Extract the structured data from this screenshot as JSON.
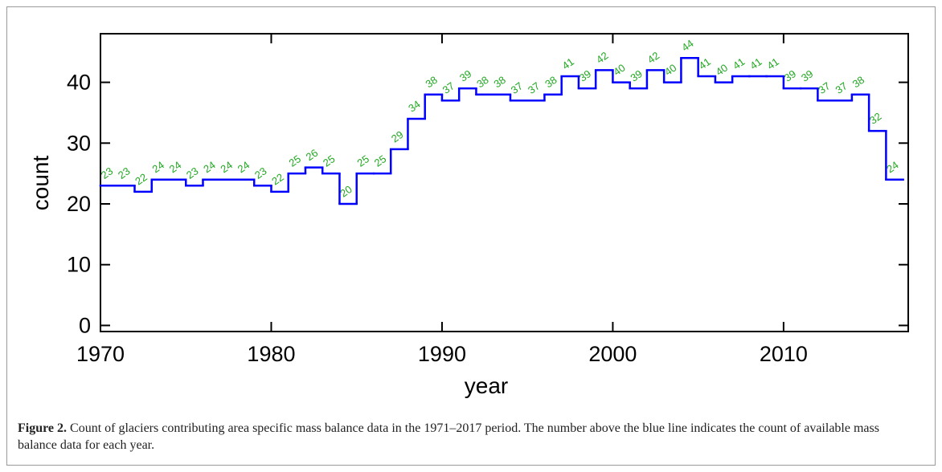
{
  "chart_data": {
    "type": "step",
    "x_label": "year",
    "y_label": "count",
    "x": [
      1971,
      1972,
      1973,
      1974,
      1975,
      1976,
      1977,
      1978,
      1979,
      1980,
      1981,
      1982,
      1983,
      1984,
      1985,
      1986,
      1987,
      1988,
      1989,
      1990,
      1991,
      1992,
      1993,
      1994,
      1995,
      1996,
      1997,
      1998,
      1999,
      2000,
      2001,
      2002,
      2003,
      2004,
      2005,
      2006,
      2007,
      2008,
      2009,
      2010,
      2011,
      2012,
      2013,
      2014,
      2015,
      2016,
      2017
    ],
    "values": [
      23,
      23,
      22,
      24,
      24,
      23,
      24,
      24,
      24,
      23,
      22,
      25,
      26,
      25,
      20,
      25,
      25,
      29,
      34,
      38,
      37,
      39,
      38,
      38,
      37,
      37,
      38,
      41,
      39,
      42,
      40,
      39,
      42,
      40,
      44,
      41,
      40,
      41,
      41,
      41,
      39,
      39,
      37,
      37,
      38,
      32,
      24
    ],
    "color": "#0000ff",
    "label_color": "#22a822",
    "xlim": [
      1970,
      2017.3
    ],
    "ylim": [
      -1,
      48
    ],
    "xticks": [
      1970,
      1980,
      1990,
      2000,
      2010
    ],
    "yticks": [
      0,
      10,
      20,
      30,
      40
    ]
  },
  "caption": {
    "label": "Figure 2.",
    "text": "Count of glaciers contributing area specific mass balance data in the 1971–2017 period. The number above the blue line indicates the count of available mass balance data for each year."
  }
}
